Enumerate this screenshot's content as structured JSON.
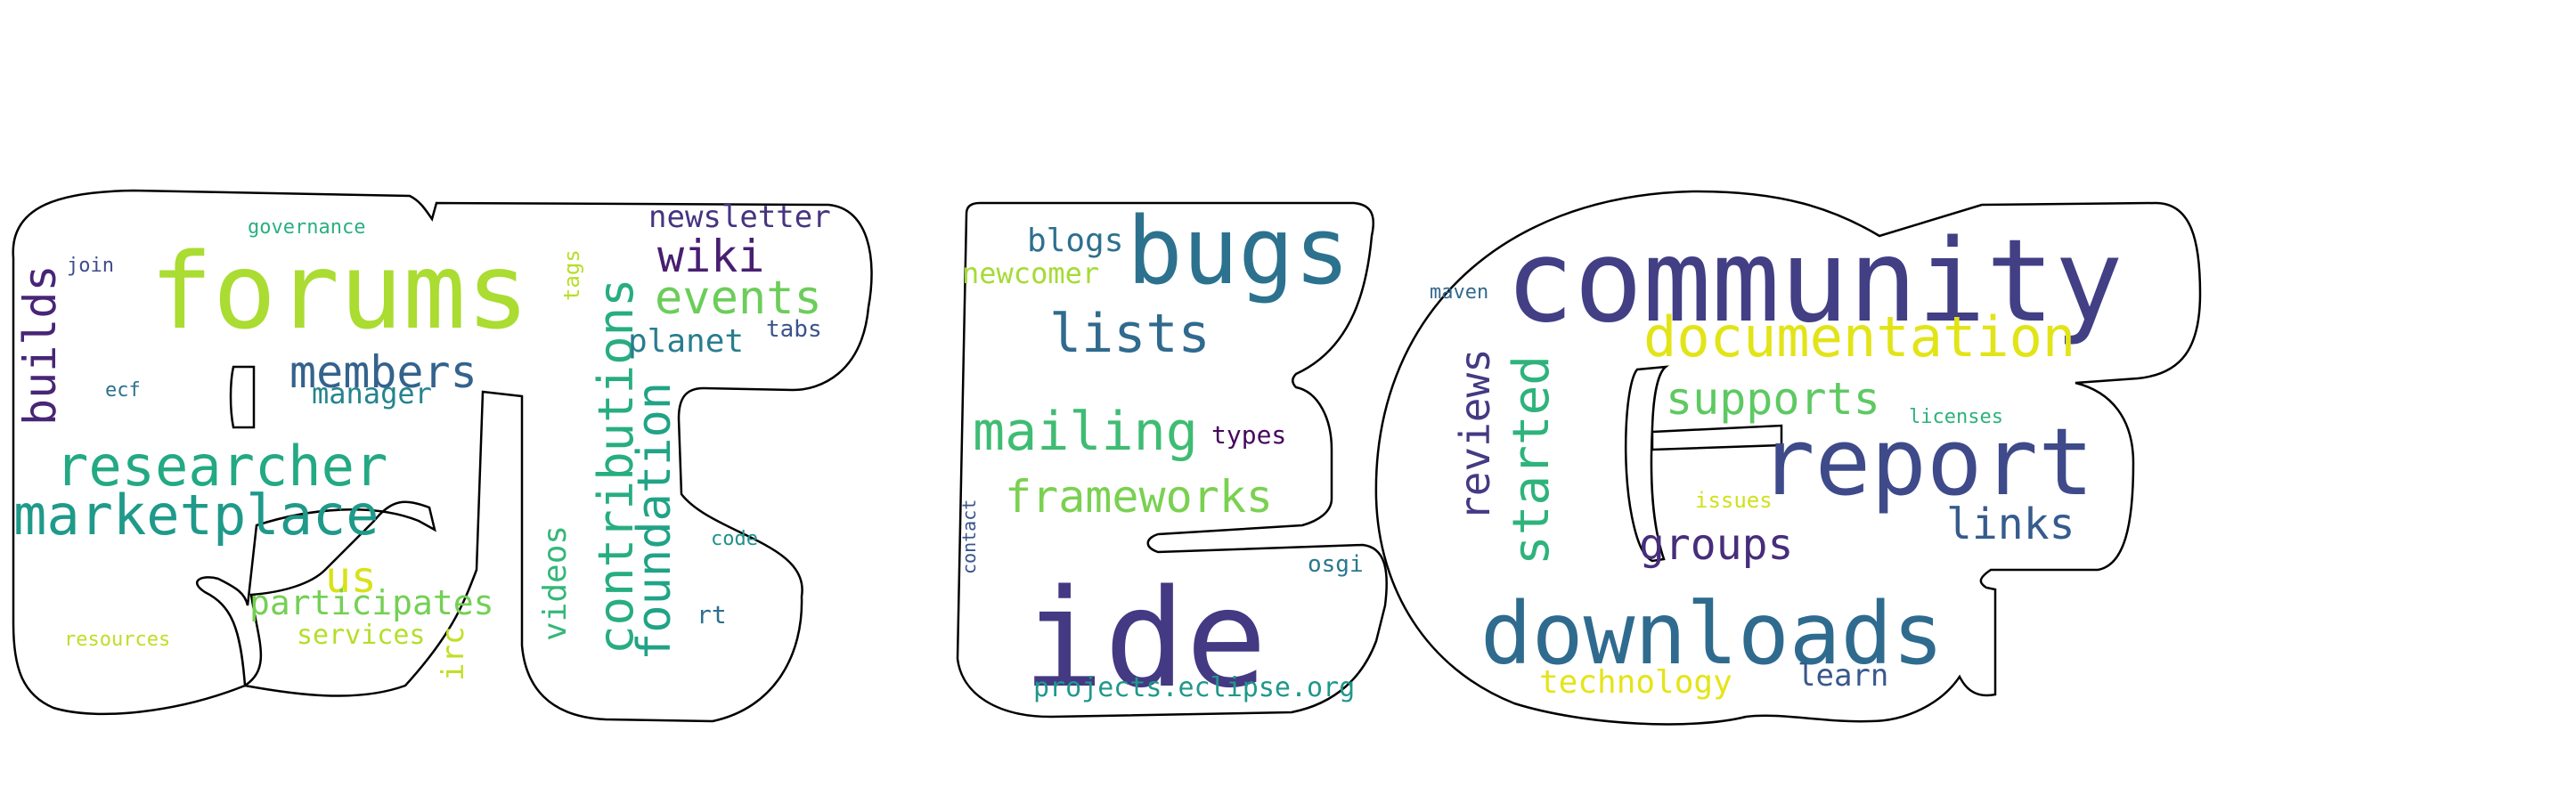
{
  "word_cloud": {
    "words": [
      {
        "text": "community",
        "color": "#423f85",
        "rotated": false
      },
      {
        "text": "ide",
        "color": "#443983",
        "rotated": false
      },
      {
        "text": "forums",
        "color": "#aadc32",
        "rotated": false
      },
      {
        "text": "bugs",
        "color": "#2c728e",
        "rotated": false
      },
      {
        "text": "downloads",
        "color": "#2f6b8e",
        "rotated": false
      },
      {
        "text": "report",
        "color": "#3e4a89",
        "rotated": false
      },
      {
        "text": "marketplace",
        "color": "#1f9a8a",
        "rotated": false
      },
      {
        "text": "researcher",
        "color": "#23a983",
        "rotated": false
      },
      {
        "text": "contributions",
        "color": "#27ad81",
        "rotated": true
      },
      {
        "text": "documentation",
        "color": "#e2e418",
        "rotated": false
      },
      {
        "text": "mailing",
        "color": "#3fbc73",
        "rotated": false
      },
      {
        "text": "lists",
        "color": "#306a8e",
        "rotated": false
      },
      {
        "text": "started",
        "color": "#2eb37c",
        "rotated": true
      },
      {
        "text": "reviews",
        "color": "#443a83",
        "rotated": true
      },
      {
        "text": "foundation",
        "color": "#20a386",
        "rotated": true
      },
      {
        "text": "frameworks",
        "color": "#7ad151",
        "rotated": false
      },
      {
        "text": "supports",
        "color": "#5ec962",
        "rotated": false
      },
      {
        "text": "members",
        "color": "#33638d",
        "rotated": false
      },
      {
        "text": "events",
        "color": "#6ccd5a",
        "rotated": false
      },
      {
        "text": "builds",
        "color": "#482576",
        "rotated": true
      },
      {
        "text": "groups",
        "color": "#472d7b",
        "rotated": false
      },
      {
        "text": "wiki",
        "color": "#481f70",
        "rotated": false
      },
      {
        "text": "links",
        "color": "#365c8d",
        "rotated": false
      },
      {
        "text": "us",
        "color": "#d8e219",
        "rotated": false
      },
      {
        "text": "participates",
        "color": "#74d055",
        "rotated": false
      },
      {
        "text": "videos",
        "color": "#35b779",
        "rotated": true
      },
      {
        "text": "planet",
        "color": "#287d8e",
        "rotated": false
      },
      {
        "text": "blogs",
        "color": "#2d708e",
        "rotated": false
      },
      {
        "text": "newsletter",
        "color": "#463480",
        "rotated": false
      },
      {
        "text": "technology",
        "color": "#e5e419",
        "rotated": false
      },
      {
        "text": "learn",
        "color": "#38588c",
        "rotated": false
      },
      {
        "text": "newcomer",
        "color": "#a5db36",
        "rotated": false
      },
      {
        "text": "manager",
        "color": "#25848e",
        "rotated": false
      },
      {
        "text": "irc",
        "color": "#c2df23",
        "rotated": true
      },
      {
        "text": "services",
        "color": "#b5de2b",
        "rotated": false
      },
      {
        "text": "projects.eclipse.org",
        "color": "#1f988b",
        "rotated": false
      },
      {
        "text": "types",
        "color": "#46085c",
        "rotated": false
      },
      {
        "text": "tabs",
        "color": "#3b528b",
        "rotated": false
      },
      {
        "text": "tags",
        "color": "#b8de29",
        "rotated": true
      },
      {
        "text": "osgi",
        "color": "#2a788e",
        "rotated": false
      },
      {
        "text": "rt",
        "color": "#2e6e8e",
        "rotated": false
      },
      {
        "text": "maven",
        "color": "#31688e",
        "rotated": false
      },
      {
        "text": "join",
        "color": "#3e4c8a",
        "rotated": false
      },
      {
        "text": "ecf",
        "color": "#2c728e",
        "rotated": false
      },
      {
        "text": "governance",
        "color": "#2ab07f",
        "rotated": false
      },
      {
        "text": "code",
        "color": "#21918c",
        "rotated": false
      },
      {
        "text": "licenses",
        "color": "#2db27d",
        "rotated": false
      },
      {
        "text": "resources",
        "color": "#bddf26",
        "rotated": false
      },
      {
        "text": "issues",
        "color": "#d0e11c",
        "rotated": false
      },
      {
        "text": "contact",
        "color": "#3a548c",
        "rotated": true
      }
    ]
  }
}
